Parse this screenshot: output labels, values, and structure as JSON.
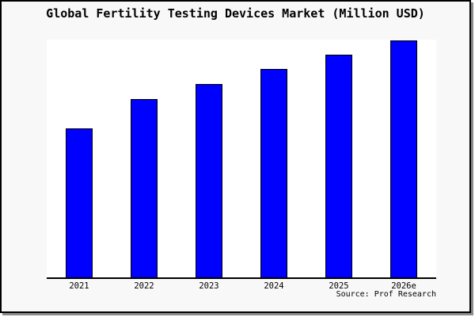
{
  "chart_data": {
    "type": "bar",
    "title": "Global Fertility Testing Devices Market (Million USD)",
    "categories": [
      "2021",
      "2022",
      "2023",
      "2024",
      "2025",
      "2026e"
    ],
    "values": [
      62.9,
      75.3,
      81.6,
      88.0,
      94.0,
      100.0
    ],
    "value_note": "no y-axis ticks shown; values are relative bar heights indexed to 2026e = 100",
    "xlabel": "",
    "ylabel": "",
    "ylim": [
      0,
      100.3
    ],
    "grid": false,
    "legend": false,
    "bar_color": "#0000ff",
    "bar_edge_color": "#000000",
    "plot_background": "#ffffff",
    "outer_background": "#f8f8f8",
    "source": "Source: Prof Research"
  }
}
